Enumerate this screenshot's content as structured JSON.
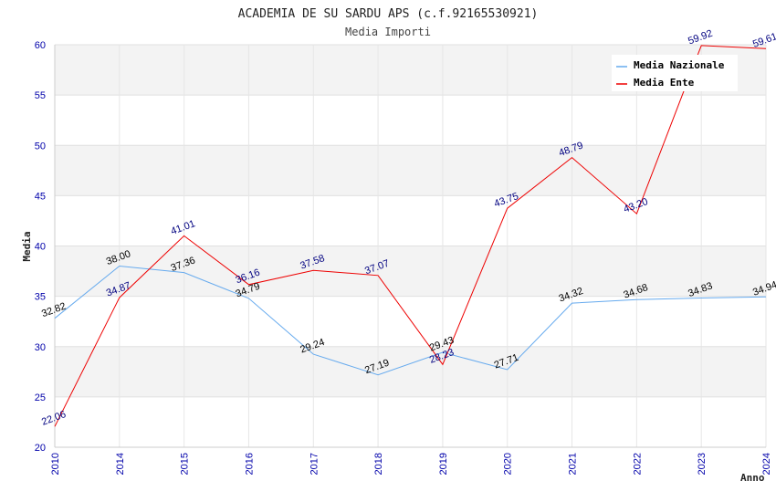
{
  "chart_data": {
    "type": "line",
    "title": "ACADEMIA DE SU SARDU APS (c.f.92165530921)",
    "subtitle": "Media Importi",
    "xlabel": "Anno",
    "ylabel": "Media",
    "x": [
      "2010",
      "2014",
      "2015",
      "2016",
      "2017",
      "2018",
      "2019",
      "2020",
      "2021",
      "2022",
      "2023",
      "2024"
    ],
    "ylim": [
      20,
      60
    ],
    "yticks": [
      "20",
      "25",
      "30",
      "35",
      "40",
      "45",
      "50",
      "55",
      "60"
    ],
    "grid": true,
    "legend_position": "top-right",
    "series": [
      {
        "name": "Media Nazionale",
        "color": "#66aaee",
        "label_color": "#000000",
        "values": [
          32.82,
          38.0,
          37.36,
          34.79,
          29.24,
          27.19,
          29.43,
          27.71,
          34.32,
          34.68,
          34.83,
          34.94
        ],
        "labels": [
          "32.82",
          "38.00",
          "37.36",
          "34.79",
          "29.24",
          "27.19",
          "29.43",
          "27.71",
          "34.32",
          "34.68",
          "34.83",
          "34.94"
        ]
      },
      {
        "name": "Media Ente",
        "color": "#ee0000",
        "label_color": "#000080",
        "values": [
          22.06,
          34.87,
          41.01,
          36.16,
          37.58,
          37.07,
          28.23,
          43.75,
          48.79,
          43.2,
          59.92,
          59.61
        ],
        "labels": [
          "22.06",
          "34.87",
          "41.01",
          "36.16",
          "37.58",
          "37.07",
          "28.23",
          "43.75",
          "48.79",
          "43.20",
          "59.92",
          "59.61"
        ]
      }
    ]
  }
}
